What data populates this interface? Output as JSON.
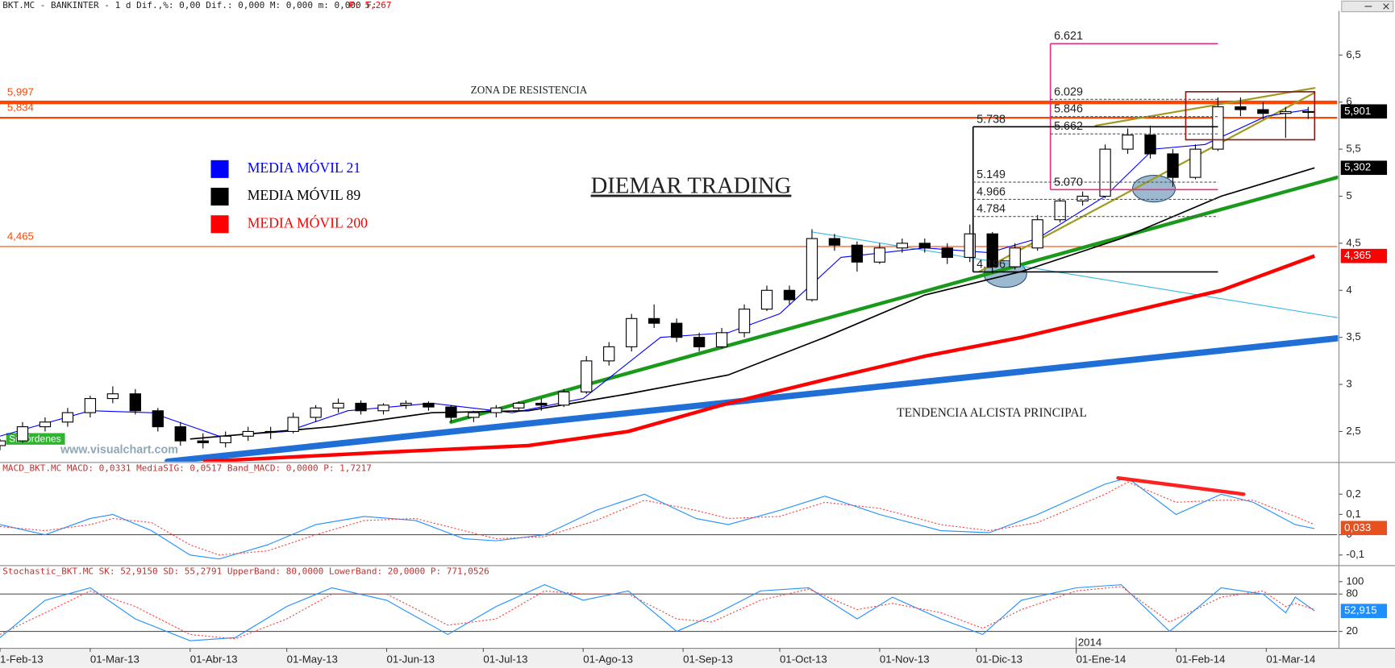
{
  "header": {
    "text": "BKT.MC - BANKINTER -  1 d Dif.,%: 0,00 Dif.: 0,000 M: 0,000 m: 0,000 F:",
    "price": "P: 5,267"
  },
  "chart_data": [
    {
      "type": "candlestick",
      "xlim": [
        "2013-02-01",
        "2014-03-23"
      ],
      "ylim": [
        2.18,
        6.97
      ],
      "yticks": [
        {
          "value": 2.5,
          "label": "2,5"
        },
        3,
        {
          "value": 3.5,
          "label": "3,5"
        },
        4,
        {
          "value": 4.5,
          "label": "4,5"
        },
        5,
        {
          "value": 5.5,
          "label": "5,5"
        },
        6,
        {
          "value": 6.5,
          "label": "6,5"
        }
      ],
      "x": [
        "2013-02-01",
        "2013-02-08",
        "2013-02-15",
        "2013-02-22",
        "2013-03-01",
        "2013-03-08",
        "2013-03-15",
        "2013-03-22",
        "2013-03-29",
        "2013-04-05",
        "2013-04-12",
        "2013-04-19",
        "2013-04-26",
        "2013-05-03",
        "2013-05-10",
        "2013-05-17",
        "2013-05-24",
        "2013-05-31",
        "2013-06-07",
        "2013-06-14",
        "2013-06-21",
        "2013-06-28",
        "2013-07-05",
        "2013-07-12",
        "2013-07-19",
        "2013-07-26",
        "2013-08-02",
        "2013-08-09",
        "2013-08-16",
        "2013-08-23",
        "2013-08-30",
        "2013-09-06",
        "2013-09-13",
        "2013-09-20",
        "2013-09-27",
        "2013-10-04",
        "2013-10-11",
        "2013-10-18",
        "2013-10-25",
        "2013-11-01",
        "2013-11-08",
        "2013-11-15",
        "2013-11-22",
        "2013-11-29",
        "2013-12-06",
        "2013-12-13",
        "2013-12-20",
        "2013-12-27",
        "2014-01-03",
        "2014-01-10",
        "2014-01-17",
        "2014-01-24",
        "2014-01-31",
        "2014-02-07",
        "2014-02-14",
        "2014-02-21",
        "2014-02-28",
        "2014-03-07",
        "2014-03-14"
      ],
      "open": [
        2.35,
        2.4,
        2.55,
        2.6,
        2.7,
        2.85,
        2.9,
        2.72,
        2.55,
        2.4,
        2.38,
        2.45,
        2.5,
        2.5,
        2.65,
        2.75,
        2.8,
        2.72,
        2.78,
        2.8,
        2.76,
        2.65,
        2.7,
        2.75,
        2.8,
        2.78,
        2.92,
        3.25,
        3.4,
        3.7,
        3.65,
        3.5,
        3.4,
        3.55,
        3.8,
        4.0,
        3.9,
        4.55,
        4.48,
        4.3,
        4.45,
        4.5,
        4.45,
        4.35,
        4.6,
        4.25,
        4.45,
        4.75,
        4.95,
        5.0,
        5.5,
        5.65,
        5.45,
        5.2,
        5.5,
        5.95,
        5.92,
        5.88,
        5.9
      ],
      "high": [
        2.42,
        2.6,
        2.65,
        2.75,
        2.88,
        2.98,
        2.95,
        2.75,
        2.6,
        2.48,
        2.5,
        2.55,
        2.55,
        2.7,
        2.78,
        2.85,
        2.83,
        2.8,
        2.83,
        2.82,
        2.78,
        2.72,
        2.78,
        2.82,
        2.85,
        2.95,
        3.3,
        3.45,
        3.75,
        3.85,
        3.7,
        3.55,
        3.6,
        3.85,
        4.05,
        4.05,
        4.65,
        4.6,
        4.52,
        4.5,
        4.55,
        4.55,
        4.5,
        4.7,
        4.62,
        4.5,
        4.8,
        4.98,
        5.05,
        5.55,
        5.72,
        5.75,
        5.5,
        5.55,
        6.05,
        6.05,
        6.0,
        5.95,
        5.95
      ],
      "low": [
        2.3,
        2.38,
        2.5,
        2.55,
        2.65,
        2.8,
        2.68,
        2.5,
        2.35,
        2.32,
        2.33,
        2.4,
        2.42,
        2.48,
        2.6,
        2.7,
        2.68,
        2.68,
        2.74,
        2.72,
        2.6,
        2.6,
        2.65,
        2.72,
        2.72,
        2.76,
        2.9,
        3.2,
        3.35,
        3.6,
        3.45,
        3.35,
        3.38,
        3.5,
        3.78,
        3.85,
        3.88,
        4.42,
        4.2,
        4.28,
        4.4,
        4.4,
        4.28,
        4.3,
        4.18,
        4.22,
        4.42,
        4.72,
        4.9,
        4.98,
        5.45,
        5.4,
        5.1,
        5.18,
        5.48,
        5.85,
        5.82,
        5.62,
        5.82
      ],
      "close": [
        2.4,
        2.55,
        2.6,
        2.7,
        2.85,
        2.9,
        2.72,
        2.55,
        2.4,
        2.38,
        2.45,
        2.5,
        2.5,
        2.65,
        2.75,
        2.8,
        2.72,
        2.78,
        2.8,
        2.76,
        2.65,
        2.7,
        2.75,
        2.8,
        2.78,
        2.92,
        3.25,
        3.4,
        3.7,
        3.65,
        3.5,
        3.4,
        3.55,
        3.8,
        4.0,
        3.9,
        4.55,
        4.48,
        4.3,
        4.45,
        4.5,
        4.45,
        4.35,
        4.6,
        4.25,
        4.45,
        4.75,
        4.95,
        5.0,
        5.5,
        5.65,
        5.45,
        5.2,
        5.5,
        5.95,
        5.92,
        5.88,
        5.9,
        5.9
      ],
      "price_tag": {
        "value": 5.901,
        "label": "5,901",
        "color": "#000000"
      },
      "overlays": [
        {
          "name": "MEDIA MÓVIL 21",
          "color": "#0000ff",
          "line_width": 1,
          "x": [
            "2013-02-01",
            "2013-03-01",
            "2013-03-20",
            "2013-04-10",
            "2013-05-01",
            "2013-05-20",
            "2013-06-15",
            "2013-07-10",
            "2013-08-01",
            "2013-08-25",
            "2013-09-15",
            "2013-10-01",
            "2013-10-20",
            "2013-11-15",
            "2013-12-05",
            "2013-12-20",
            "2014-01-10",
            "2014-01-25",
            "2014-02-10",
            "2014-03-01",
            "2014-03-14"
          ],
          "values": [
            2.45,
            2.72,
            2.7,
            2.45,
            2.5,
            2.72,
            2.8,
            2.7,
            2.85,
            3.5,
            3.55,
            3.75,
            4.35,
            4.45,
            4.4,
            4.55,
            5.0,
            5.5,
            5.55,
            5.85,
            5.92
          ]
        },
        {
          "name": "MEDIA MÓVIL 89",
          "color": "#000000",
          "line_width": 1.5,
          "x": [
            "2013-04-01",
            "2013-05-15",
            "2013-06-15",
            "2013-07-15",
            "2013-08-15",
            "2013-09-15",
            "2013-10-15",
            "2013-11-15",
            "2013-12-15",
            "2014-01-15",
            "2014-02-15",
            "2014-03-16"
          ],
          "values": [
            2.42,
            2.55,
            2.7,
            2.72,
            2.9,
            3.1,
            3.5,
            3.95,
            4.2,
            4.55,
            5.0,
            5.302
          ],
          "tag": {
            "value": 5.302,
            "label": "5,302",
            "color": "#000000"
          }
        },
        {
          "name": "MEDIA MÓVIL 200",
          "color": "#ff0000",
          "line_width": 4,
          "x": [
            "2013-04-05",
            "2013-06-01",
            "2013-07-15",
            "2013-08-15",
            "2013-09-15",
            "2013-10-15",
            "2013-11-15",
            "2013-12-15",
            "2014-01-15",
            "2014-02-15",
            "2014-03-16"
          ],
          "values": [
            2.18,
            2.28,
            2.35,
            2.5,
            2.8,
            3.05,
            3.3,
            3.5,
            3.75,
            4.0,
            4.365
          ],
          "tag": {
            "value": 4.365,
            "label": "4,365",
            "color": "#ff0000"
          }
        }
      ],
      "trendlines": [
        {
          "color": "#1f6fd6",
          "line_width": 7,
          "x": [
            "2013-03-25",
            "2014-03-23"
          ],
          "values": [
            2.18,
            3.49
          ]
        },
        {
          "color": "#1a9a1a",
          "line_width": 4,
          "x": [
            "2013-06-21",
            "2014-03-23"
          ],
          "values": [
            2.6,
            5.2
          ]
        },
        {
          "color": "#35b6e6",
          "line_width": 1,
          "x": [
            "2013-10-11",
            "2014-03-23"
          ],
          "values": [
            4.62,
            3.71
          ]
        },
        {
          "color": "#a09a20",
          "line_width": 2,
          "x": [
            "2014-01-07",
            "2014-03-16"
          ],
          "values": [
            5.75,
            6.15
          ]
        },
        {
          "color": "#a09a20",
          "line_width": 2,
          "x": [
            "2013-12-02",
            "2014-03-16"
          ],
          "values": [
            4.2,
            6.1
          ]
        }
      ],
      "levels": [
        {
          "value": 5.997,
          "label": "5,997",
          "color": "#ff4500",
          "line_width": 4
        },
        {
          "value": 5.834,
          "label": "5,834",
          "color": "#ff4500",
          "line_width": 2
        },
        {
          "value": 4.465,
          "label": "4,465",
          "color": "#ff4500",
          "line_width": 1
        }
      ],
      "fibs": [
        {
          "color": "#e8308a",
          "x": [
            "2013-12-24",
            "2014-02-14"
          ],
          "levels": [
            {
              "value": 6.621,
              "style": "solid"
            },
            {
              "value": 6.029,
              "style": "dashed"
            },
            {
              "value": 5.846,
              "style": "dashed"
            },
            {
              "value": 5.662,
              "style": "dashed"
            },
            {
              "value": 5.07,
              "label": "5.070",
              "style": "solid"
            }
          ]
        },
        {
          "color": "#000000",
          "x": [
            "2013-11-30",
            "2014-02-14"
          ],
          "levels": [
            {
              "value": 5.738,
              "style": "solid"
            },
            {
              "value": 5.149,
              "style": "dashed"
            },
            {
              "value": 4.966,
              "style": "dashed"
            },
            {
              "value": 4.784,
              "style": "dashed"
            },
            {
              "value": 4.196,
              "style": "solid"
            }
          ]
        }
      ],
      "boxes": [
        {
          "color": "#8b1a1a",
          "x": [
            "2014-02-04",
            "2014-03-16"
          ],
          "values": [
            6.11,
            5.6
          ]
        }
      ],
      "annotations": [
        "ZONA DE RESISTENCIA",
        "DIEMAR TRADING",
        "TENDENCIA ALCISTA PRINCIPAL"
      ],
      "watermark": "www.visualchart.com",
      "status": "Sin órdenes"
    },
    {
      "type": "line",
      "header": "MACD_BKT.MC MACD: 0,0331 MediaSIG: 0,0517 Band_MACD: 0,0000 P: 1,7217",
      "xlim": [
        "2013-02-01",
        "2014-03-23"
      ],
      "ylim": [
        -0.148,
        0.352
      ],
      "yticks": [
        {
          "value": -0.1,
          "label": "-0,1"
        },
        0,
        {
          "value": 0.1,
          "label": "0,1"
        },
        {
          "value": 0.2,
          "label": "0,2"
        }
      ],
      "bands": [
        0
      ],
      "x": [
        "2013-02-01",
        "2013-02-15",
        "2013-03-01",
        "2013-03-08",
        "2013-03-20",
        "2013-04-01",
        "2013-04-10",
        "2013-04-25",
        "2013-05-10",
        "2013-05-25",
        "2013-06-10",
        "2013-06-25",
        "2013-07-05",
        "2013-07-20",
        "2013-08-05",
        "2013-08-20",
        "2013-09-05",
        "2013-09-15",
        "2013-10-01",
        "2013-10-15",
        "2013-11-01",
        "2013-11-20",
        "2013-12-05",
        "2013-12-20",
        "2014-01-10",
        "2014-01-17",
        "2014-02-01",
        "2014-02-15",
        "2014-02-25",
        "2014-03-10",
        "2014-03-16"
      ],
      "series": [
        {
          "color": "#1e8fff",
          "dash": false,
          "values": [
            0.05,
            0.0,
            0.08,
            0.1,
            0.02,
            -0.1,
            -0.12,
            -0.05,
            0.05,
            0.09,
            0.07,
            -0.02,
            -0.03,
            0.0,
            0.12,
            0.2,
            0.08,
            0.05,
            0.12,
            0.19,
            0.1,
            0.02,
            0.01,
            0.1,
            0.25,
            0.28,
            0.1,
            0.2,
            0.16,
            0.05,
            0.03
          ]
        },
        {
          "color": "#ff4040",
          "dash": true,
          "values": [
            0.04,
            0.02,
            0.05,
            0.08,
            0.06,
            -0.05,
            -0.1,
            -0.08,
            0.0,
            0.07,
            0.08,
            0.02,
            -0.02,
            -0.01,
            0.07,
            0.17,
            0.12,
            0.08,
            0.09,
            0.16,
            0.13,
            0.05,
            0.02,
            0.06,
            0.2,
            0.26,
            0.16,
            0.17,
            0.17,
            0.09,
            0.05
          ]
        }
      ],
      "trendlines": [
        {
          "color": "#ff2020",
          "line_width": 4,
          "x": [
            "2014-01-14",
            "2014-02-22"
          ],
          "values": [
            0.28,
            0.2
          ]
        }
      ],
      "tag": {
        "value": 0.033,
        "label": "0,033",
        "color": "#e8501e"
      }
    },
    {
      "type": "line",
      "header": "Stochastic_BKT.MC SK: 52,9150 SD: 55,2791 UpperBand: 80,0000 LowerBand: 20,0000 P: 771,0526",
      "xlim": [
        "2013-02-01",
        "2014-03-23"
      ],
      "ylim": [
        -7.1,
        124.3
      ],
      "yticks": [
        20,
        80,
        100
      ],
      "bands": [
        80,
        20
      ],
      "x": [
        "2013-02-01",
        "2013-02-15",
        "2013-03-01",
        "2013-03-15",
        "2013-04-01",
        "2013-04-15",
        "2013-05-01",
        "2013-05-15",
        "2013-06-01",
        "2013-06-20",
        "2013-07-05",
        "2013-07-20",
        "2013-08-01",
        "2013-08-15",
        "2013-08-30",
        "2013-09-10",
        "2013-09-25",
        "2013-10-10",
        "2013-10-25",
        "2013-11-05",
        "2013-11-20",
        "2013-12-03",
        "2013-12-15",
        "2014-01-01",
        "2014-01-15",
        "2014-01-30",
        "2014-02-15",
        "2014-02-28",
        "2014-03-07",
        "2014-03-10",
        "2014-03-16"
      ],
      "series": [
        {
          "color": "#1e8fff",
          "dash": false,
          "values": [
            10,
            70,
            90,
            40,
            5,
            10,
            60,
            90,
            70,
            15,
            60,
            95,
            70,
            85,
            20,
            45,
            85,
            90,
            40,
            75,
            40,
            15,
            70,
            90,
            95,
            20,
            90,
            80,
            50,
            75,
            53
          ]
        },
        {
          "color": "#ff4040",
          "dash": true,
          "values": [
            15,
            50,
            85,
            60,
            15,
            8,
            40,
            80,
            80,
            30,
            40,
            85,
            80,
            80,
            40,
            35,
            70,
            88,
            55,
            65,
            50,
            25,
            55,
            85,
            92,
            35,
            75,
            85,
            60,
            65,
            55
          ]
        }
      ],
      "tag": {
        "value": 52.915,
        "label": "52,915",
        "color": "#1e8fff"
      },
      "xticks": [
        {
          "value": "2013-02-01",
          "label": "1-Feb-13"
        },
        {
          "value": "2013-03-01",
          "label": "01-Mar-13"
        },
        {
          "value": "2013-04-01",
          "label": "01-Abr-13"
        },
        {
          "value": "2013-05-01",
          "label": "01-May-13"
        },
        {
          "value": "2013-06-01",
          "label": "01-Jun-13"
        },
        {
          "value": "2013-07-01",
          "label": "01-Jul-13"
        },
        {
          "value": "2013-08-01",
          "label": "01-Ago-13"
        },
        {
          "value": "2013-09-01",
          "label": "01-Sep-13"
        },
        {
          "value": "2013-10-01",
          "label": "01-Oct-13"
        },
        {
          "value": "2013-11-01",
          "label": "01-Nov-13"
        },
        {
          "value": "2013-12-01",
          "label": "01-Dic-13"
        },
        {
          "value": "2014-01-01",
          "label": "01-Ene-14"
        },
        {
          "value": "2014-02-01",
          "label": "01-Feb-14"
        },
        {
          "value": "2014-03-01",
          "label": "01-Mar-14"
        }
      ],
      "year_mark": {
        "value": "2014-01-01",
        "label": "2014"
      }
    }
  ]
}
